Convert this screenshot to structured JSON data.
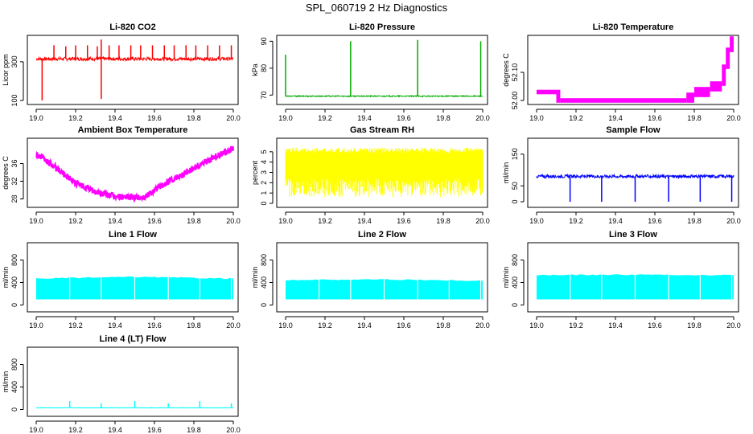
{
  "figure_title": "SPL_060719  2 Hz Diagnostics",
  "chart_data": [
    {
      "type": "line",
      "title": "Li-820 CO2",
      "xlabel": "",
      "ylabel": "Licor ppm",
      "color": "#ff0000",
      "xlim": [
        19.0,
        20.0
      ],
      "ylim": [
        100,
        420
      ],
      "xticks": [
        "19.0",
        "19.2",
        "19.4",
        "19.6",
        "19.8",
        "20.0"
      ],
      "yticks": [
        "100",
        "300"
      ],
      "series": [
        {
          "name": "CO2",
          "base": 315,
          "noise": 9,
          "shape": "flat",
          "spikes": [
            {
              "x": 19.03,
              "y": 100
            },
            {
              "x": 19.09,
              "y": 385
            },
            {
              "x": 19.15,
              "y": 380
            },
            {
              "x": 19.2,
              "y": 385
            },
            {
              "x": 19.26,
              "y": 385
            },
            {
              "x": 19.31,
              "y": 380
            },
            {
              "x": 19.33,
              "y": 415
            },
            {
              "x": 19.33,
              "y": 108
            },
            {
              "x": 19.37,
              "y": 385
            },
            {
              "x": 19.42,
              "y": 385
            },
            {
              "x": 19.48,
              "y": 385
            },
            {
              "x": 19.53,
              "y": 385
            },
            {
              "x": 19.59,
              "y": 385
            },
            {
              "x": 19.65,
              "y": 385
            },
            {
              "x": 19.7,
              "y": 385
            },
            {
              "x": 19.76,
              "y": 385
            },
            {
              "x": 19.81,
              "y": 385
            },
            {
              "x": 19.87,
              "y": 385
            },
            {
              "x": 19.93,
              "y": 385
            },
            {
              "x": 19.99,
              "y": 385
            }
          ]
        }
      ]
    },
    {
      "type": "line",
      "title": "Li-820 Pressure",
      "xlabel": "",
      "ylabel": "kPa",
      "color": "#00aa00",
      "xlim": [
        19.0,
        20.0
      ],
      "ylim": [
        68,
        91
      ],
      "xticks": [
        "19.0",
        "19.2",
        "19.4",
        "19.6",
        "19.8",
        "20.0"
      ],
      "yticks": [
        "70",
        "80",
        "90"
      ],
      "series": [
        {
          "name": "Pressure",
          "base": 69.6,
          "noise": 0.2,
          "shape": "flat",
          "spikes": [
            {
              "x": 19.0,
              "y": 85
            },
            {
              "x": 19.33,
              "y": 90
            },
            {
              "x": 19.67,
              "y": 90.5
            },
            {
              "x": 19.99,
              "y": 90
            }
          ]
        }
      ]
    },
    {
      "type": "line",
      "title": "Li-820 Temperature",
      "xlabel": "",
      "ylabel": "degrees C",
      "color": "#ff00ff",
      "xlim": [
        19.0,
        20.0
      ],
      "ylim": [
        52.0,
        52.22
      ],
      "xticks": [
        "19.0",
        "19.2",
        "19.4",
        "19.6",
        "19.8",
        "20.0"
      ],
      "yticks": [
        "52.00",
        "52.10"
      ],
      "series": [
        {
          "name": "Temp",
          "shape": "steps",
          "points": [
            [
              19.0,
              52.03
            ],
            [
              19.1,
              52.03
            ],
            [
              19.12,
              52.0
            ],
            [
              19.76,
              52.0
            ],
            [
              19.8,
              52.02
            ],
            [
              19.88,
              52.04
            ],
            [
              19.94,
              52.06
            ],
            [
              19.96,
              52.12
            ],
            [
              19.98,
              52.18
            ],
            [
              20.0,
              52.22
            ]
          ]
        }
      ]
    },
    {
      "type": "line",
      "title": "Ambient Box Temperature",
      "xlabel": "",
      "ylabel": "degrees C",
      "color": "#ff00ff",
      "xlim": [
        19.0,
        20.0
      ],
      "ylim": [
        27,
        41
      ],
      "xticks": [
        "19.0",
        "19.2",
        "19.4",
        "19.6",
        "19.8",
        "20.0"
      ],
      "yticks": [
        "28",
        "32",
        "36"
      ],
      "series": [
        {
          "name": "Ambient",
          "shape": "curve",
          "noise": 0.7,
          "points": [
            [
              19.0,
              38.2
            ],
            [
              19.1,
              35.0
            ],
            [
              19.2,
              31.6
            ],
            [
              19.3,
              29.6
            ],
            [
              19.4,
              28.6
            ],
            [
              19.5,
              28.3
            ],
            [
              19.55,
              28.4
            ],
            [
              19.6,
              30.0
            ],
            [
              19.7,
              32.6
            ],
            [
              19.8,
              35.0
            ],
            [
              19.9,
              37.3
            ],
            [
              20.0,
              39.5
            ]
          ]
        }
      ]
    },
    {
      "type": "line",
      "title": "Gas Stream RH",
      "xlabel": "",
      "ylabel": "percent",
      "color": "#ffff00",
      "xlim": [
        19.0,
        20.0
      ],
      "ylim": [
        0,
        6
      ],
      "xticks": [
        "19.0",
        "19.2",
        "19.4",
        "19.6",
        "19.8",
        "20.0"
      ],
      "yticks": [
        "0",
        "1",
        "2",
        "3",
        "4",
        "5"
      ],
      "series": [
        {
          "name": "RH",
          "shape": "band",
          "hi": 5.4,
          "lo": 0.6
        }
      ]
    },
    {
      "type": "line",
      "title": "Sample Flow",
      "xlabel": "",
      "ylabel": "ml/min",
      "color": "#0000ff",
      "xlim": [
        19.0,
        20.0
      ],
      "ylim": [
        -5,
        190
      ],
      "xticks": [
        "19.0",
        "19.2",
        "19.4",
        "19.6",
        "19.8",
        "20.0"
      ],
      "yticks": [
        "0",
        "50",
        "150"
      ],
      "series": [
        {
          "name": "SampleFlow",
          "base": 80,
          "noise": 5,
          "shape": "flat",
          "spikes": [
            {
              "x": 19.17,
              "y": 0
            },
            {
              "x": 19.33,
              "y": 0
            },
            {
              "x": 19.5,
              "y": 0
            },
            {
              "x": 19.67,
              "y": 0
            },
            {
              "x": 19.83,
              "y": 0
            },
            {
              "x": 19.99,
              "y": 0
            }
          ]
        }
      ]
    },
    {
      "type": "area",
      "title": "Line 1 Flow",
      "xlabel": "",
      "ylabel": "ml/min",
      "color": "#00ffff",
      "xlim": [
        19.0,
        20.0
      ],
      "ylim": [
        -50,
        1050
      ],
      "xticks": [
        "19.0",
        "19.2",
        "19.4",
        "19.6",
        "19.8",
        "20.0"
      ],
      "yticks": [
        "0",
        "400",
        "800"
      ],
      "series": [
        {
          "name": "Line1",
          "shape": "block",
          "lo": 100,
          "top": [
            [
              19.0,
              470
            ],
            [
              19.5,
              500
            ],
            [
              20.0,
              470
            ]
          ],
          "gaps": [
            19.17,
            19.33,
            19.5,
            19.67,
            19.83,
            19.99
          ]
        }
      ]
    },
    {
      "type": "area",
      "title": "Line 2 Flow",
      "xlabel": "",
      "ylabel": "ml/min",
      "color": "#00ffff",
      "xlim": [
        19.0,
        20.0
      ],
      "ylim": [
        -50,
        1050
      ],
      "xticks": [
        "19.0",
        "19.2",
        "19.4",
        "19.6",
        "19.8",
        "20.0"
      ],
      "yticks": [
        "0",
        "400",
        "800"
      ],
      "series": [
        {
          "name": "Line2",
          "shape": "block",
          "lo": 100,
          "top": [
            [
              19.0,
              445
            ],
            [
              19.5,
              455
            ],
            [
              20.0,
              430
            ]
          ],
          "gaps": [
            19.17,
            19.33,
            19.5,
            19.67,
            19.83,
            19.99
          ]
        }
      ]
    },
    {
      "type": "area",
      "title": "Line 3 Flow",
      "xlabel": "",
      "ylabel": "ml/min",
      "color": "#00ffff",
      "xlim": [
        19.0,
        20.0
      ],
      "ylim": [
        -50,
        1050
      ],
      "xticks": [
        "19.0",
        "19.2",
        "19.4",
        "19.6",
        "19.8",
        "20.0"
      ],
      "yticks": [
        "0",
        "400",
        "800"
      ],
      "series": [
        {
          "name": "Line3",
          "shape": "block",
          "lo": 100,
          "top": [
            [
              19.0,
              530
            ],
            [
              19.5,
              540
            ],
            [
              20.0,
              530
            ]
          ],
          "gaps": [
            19.17,
            19.33,
            19.5,
            19.67,
            19.83,
            19.99
          ]
        }
      ]
    },
    {
      "type": "line",
      "title": "Line 4 (LT) Flow",
      "xlabel": "",
      "ylabel": "ml/min",
      "color": "#00ffff",
      "xlim": [
        19.0,
        20.0
      ],
      "ylim": [
        -50,
        1050
      ],
      "xticks": [
        "19.0",
        "19.2",
        "19.4",
        "19.6",
        "19.8",
        "20.0"
      ],
      "yticks": [
        "0",
        "400",
        "800"
      ],
      "series": [
        {
          "name": "Line4",
          "base": 30,
          "noise": 4,
          "shape": "flat",
          "spikes": [
            {
              "x": 19.17,
              "y": 150
            },
            {
              "x": 19.33,
              "y": 110
            },
            {
              "x": 19.5,
              "y": 150
            },
            {
              "x": 19.67,
              "y": 110
            },
            {
              "x": 19.83,
              "y": 150
            },
            {
              "x": 19.99,
              "y": 110
            }
          ]
        }
      ]
    }
  ]
}
